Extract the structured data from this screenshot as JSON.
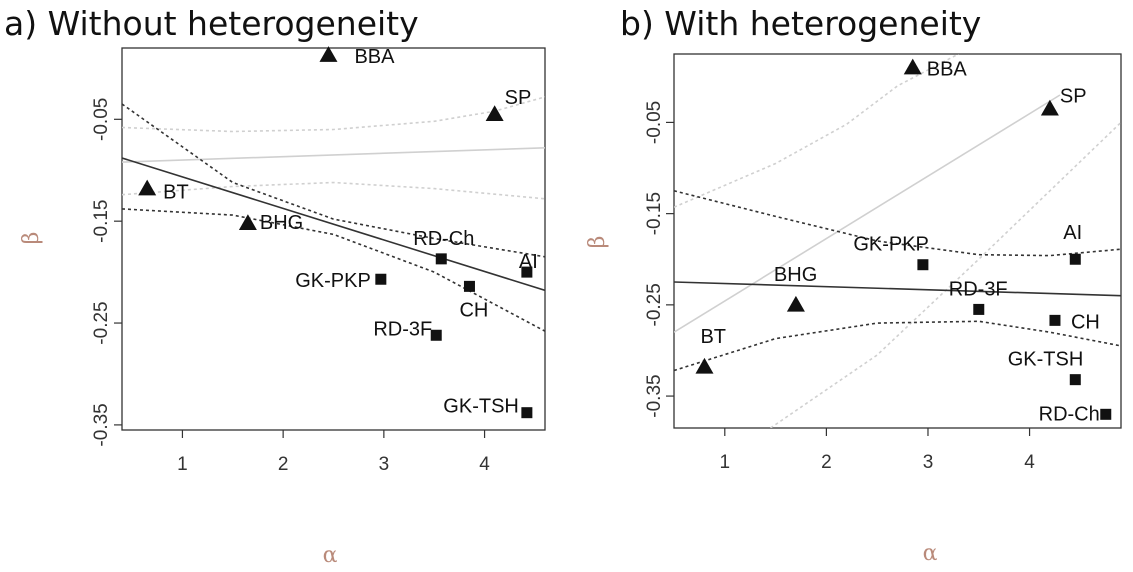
{
  "chart_data": [
    {
      "type": "scatter",
      "title": "a) Without heterogeneity",
      "xlabel": "α",
      "ylabel": "β",
      "xticks": [
        1,
        2,
        3,
        4
      ],
      "yticks": [
        -0.05,
        -0.15,
        -0.25,
        -0.35
      ],
      "ytick_labels": [
        "-0.05",
        "-0.15",
        "-0.25",
        "-0.35"
      ],
      "xlim": [
        0.4,
        4.6
      ],
      "ylim": [
        -0.355,
        0.02
      ],
      "grid": false,
      "points": [
        {
          "label": "BBA",
          "x": 2.45,
          "y": 0.013,
          "marker": "triangle"
        },
        {
          "label": "SP",
          "x": 4.1,
          "y": -0.045,
          "marker": "triangle"
        },
        {
          "label": "BT",
          "x": 0.65,
          "y": -0.118,
          "marker": "triangle"
        },
        {
          "label": "BHG",
          "x": 1.65,
          "y": -0.152,
          "marker": "triangle"
        },
        {
          "label": "RD-Ch",
          "x": 3.57,
          "y": -0.187,
          "marker": "square"
        },
        {
          "label": "AI",
          "x": 4.42,
          "y": -0.2,
          "marker": "square"
        },
        {
          "label": "GK-PKP",
          "x": 2.97,
          "y": -0.207,
          "marker": "square"
        },
        {
          "label": "CH",
          "x": 3.85,
          "y": -0.214,
          "marker": "square"
        },
        {
          "label": "RD-3F",
          "x": 3.52,
          "y": -0.262,
          "marker": "square"
        },
        {
          "label": "GK-TSH",
          "x": 4.42,
          "y": -0.338,
          "marker": "square"
        }
      ],
      "lines": [
        {
          "style": "solid",
          "color": "#d0d0d0",
          "x": [
            0.4,
            4.6
          ],
          "y": [
            -0.092,
            -0.078
          ]
        },
        {
          "style": "dotted",
          "color": "#d0d0d0",
          "x": [
            0.4,
            1.5,
            2.5,
            3.5,
            4.1,
            4.6
          ],
          "y": [
            -0.058,
            -0.062,
            -0.06,
            -0.052,
            -0.042,
            -0.028
          ]
        },
        {
          "style": "dotted",
          "color": "#d0d0d0",
          "x": [
            0.4,
            1.5,
            2.5,
            3.5,
            4.6
          ],
          "y": [
            -0.124,
            -0.116,
            -0.112,
            -0.118,
            -0.128
          ]
        },
        {
          "style": "solid",
          "color": "#333333",
          "x": [
            0.4,
            4.6
          ],
          "y": [
            -0.088,
            -0.218
          ]
        },
        {
          "style": "dotted",
          "color": "#333333",
          "x": [
            0.4,
            1.5,
            2.5,
            3.5,
            4.6
          ],
          "y": [
            -0.035,
            -0.112,
            -0.148,
            -0.167,
            -0.185
          ]
        },
        {
          "style": "dotted",
          "color": "#333333",
          "x": [
            0.4,
            1.5,
            2.5,
            3.5,
            4.6
          ],
          "y": [
            -0.138,
            -0.144,
            -0.163,
            -0.2,
            -0.258
          ]
        }
      ]
    },
    {
      "type": "scatter",
      "title": "b) With heterogeneity",
      "xlabel": "α",
      "ylabel": "β",
      "xticks": [
        1,
        2,
        3,
        4
      ],
      "yticks": [
        -0.05,
        -0.15,
        -0.25,
        -0.35
      ],
      "ytick_labels": [
        "-0.05",
        "-0.15",
        "-0.25",
        "-0.35"
      ],
      "xlim": [
        0.5,
        4.9
      ],
      "ylim": [
        -0.385,
        0.025
      ],
      "grid": false,
      "points": [
        {
          "label": "BBA",
          "x": 2.85,
          "y": 0.01,
          "marker": "triangle"
        },
        {
          "label": "SP",
          "x": 4.2,
          "y": -0.035,
          "marker": "triangle"
        },
        {
          "label": "AI",
          "x": 4.45,
          "y": -0.2,
          "marker": "square"
        },
        {
          "label": "GK-PKP",
          "x": 2.95,
          "y": -0.206,
          "marker": "square"
        },
        {
          "label": "BHG",
          "x": 1.7,
          "y": -0.25,
          "marker": "triangle"
        },
        {
          "label": "RD-3F",
          "x": 3.5,
          "y": -0.255,
          "marker": "square"
        },
        {
          "label": "CH",
          "x": 4.25,
          "y": -0.267,
          "marker": "square"
        },
        {
          "label": "BT",
          "x": 0.8,
          "y": -0.318,
          "marker": "triangle"
        },
        {
          "label": "GK-TSH",
          "x": 4.45,
          "y": -0.332,
          "marker": "square"
        },
        {
          "label": "RD-Ch",
          "x": 4.75,
          "y": -0.37,
          "marker": "square"
        }
      ],
      "lines": [
        {
          "style": "solid",
          "color": "#d0d0d0",
          "x": [
            0.5,
            4.3
          ],
          "y": [
            -0.28,
            -0.02
          ]
        },
        {
          "style": "dotted",
          "color": "#d0d0d0",
          "x": [
            0.5,
            1.5,
            2.2,
            2.7,
            3.3
          ],
          "y": [
            -0.143,
            -0.095,
            -0.052,
            -0.01,
            0.025
          ]
        },
        {
          "style": "dotted",
          "color": "#d0d0d0",
          "x": [
            1.45,
            2.5,
            3.5,
            4.2,
            4.9
          ],
          "y": [
            -0.385,
            -0.305,
            -0.2,
            -0.125,
            -0.05
          ]
        },
        {
          "style": "solid",
          "color": "#333333",
          "x": [
            0.5,
            4.9
          ],
          "y": [
            -0.225,
            -0.24
          ]
        },
        {
          "style": "dotted",
          "color": "#333333",
          "x": [
            0.5,
            1.5,
            2.5,
            3.5,
            4.2,
            4.9
          ],
          "y": [
            -0.125,
            -0.153,
            -0.18,
            -0.195,
            -0.196,
            -0.189
          ]
        },
        {
          "style": "dotted",
          "color": "#333333",
          "x": [
            0.5,
            1.5,
            2.5,
            3.5,
            4.2,
            4.9
          ],
          "y": [
            -0.322,
            -0.287,
            -0.27,
            -0.268,
            -0.28,
            -0.295
          ]
        }
      ]
    }
  ]
}
